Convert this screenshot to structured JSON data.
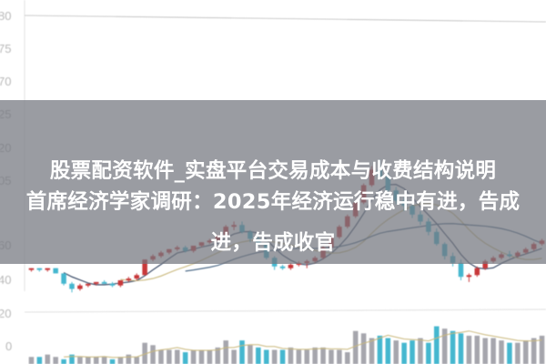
{
  "overlay": {
    "line1": "股票配资软件_实盘平台交易成本与收费结构说明",
    "line2": "首席经济学家调研：2025年经济运行稳中有进，告成",
    "line3": "进，告成收官"
  },
  "colors": {
    "up": "#c8383a",
    "down": "#45b7cf",
    "volume_neutral": "#a6a6ad",
    "ma_short": "#2c3e5c",
    "ma_long": "#c9b77a",
    "overlay": "#75787e"
  },
  "chart_data": {
    "type": "candlestick",
    "price_axis_labels": [
      "80",
      "75",
      "70",
      "25",
      "20",
      "05",
      "60",
      "40"
    ],
    "volume_axis_labels": [
      "20",
      "0"
    ],
    "ylim": [
      30,
      115
    ],
    "volume_ylim": [
      0,
      22
    ],
    "grid": false,
    "candles": [
      [
        46,
        47,
        45,
        47
      ],
      [
        47,
        47,
        45,
        46
      ],
      [
        46,
        47,
        45,
        47
      ],
      [
        47,
        47,
        44,
        44
      ],
      [
        44,
        44,
        37,
        38
      ],
      [
        38,
        39,
        33,
        35
      ],
      [
        35,
        38,
        34,
        37
      ],
      [
        37,
        38,
        36,
        38
      ],
      [
        38,
        39,
        37,
        39
      ],
      [
        39,
        40,
        38,
        38
      ],
      [
        38,
        39,
        36,
        37
      ],
      [
        37,
        40,
        36,
        40
      ],
      [
        40,
        42,
        39,
        41
      ],
      [
        41,
        44,
        40,
        43
      ],
      [
        43,
        52,
        43,
        52
      ],
      [
        52,
        55,
        51,
        54
      ],
      [
        54,
        57,
        53,
        56
      ],
      [
        56,
        58,
        55,
        58
      ],
      [
        58,
        60,
        57,
        59
      ],
      [
        59,
        60,
        56,
        57
      ],
      [
        57,
        60,
        56,
        60
      ],
      [
        60,
        62,
        59,
        62
      ],
      [
        62,
        64,
        61,
        63
      ],
      [
        63,
        66,
        62,
        66
      ],
      [
        66,
        72,
        65,
        71
      ],
      [
        71,
        74,
        69,
        72
      ],
      [
        72,
        74,
        67,
        68
      ],
      [
        68,
        69,
        62,
        64
      ],
      [
        64,
        66,
        60,
        61
      ],
      [
        61,
        62,
        52,
        53
      ],
      [
        53,
        54,
        46,
        48
      ],
      [
        48,
        49,
        46,
        47
      ],
      [
        47,
        50,
        46,
        49
      ],
      [
        49,
        51,
        48,
        50
      ],
      [
        50,
        52,
        47,
        51
      ],
      [
        51,
        54,
        50,
        53
      ],
      [
        53,
        60,
        52,
        59
      ],
      [
        59,
        66,
        58,
        65
      ],
      [
        65,
        72,
        64,
        71
      ],
      [
        71,
        78,
        70,
        77
      ],
      [
        77,
        86,
        76,
        85
      ],
      [
        85,
        96,
        84,
        95
      ],
      [
        95,
        106,
        94,
        104
      ],
      [
        104,
        110,
        98,
        100
      ],
      [
        100,
        102,
        90,
        92
      ],
      [
        92,
        94,
        84,
        86
      ],
      [
        86,
        88,
        80,
        83
      ],
      [
        83,
        84,
        76,
        78
      ],
      [
        78,
        80,
        72,
        74
      ],
      [
        74,
        76,
        66,
        68
      ],
      [
        68,
        70,
        60,
        61
      ],
      [
        61,
        62,
        52,
        54
      ],
      [
        54,
        56,
        48,
        50
      ],
      [
        50,
        52,
        40,
        42
      ],
      [
        42,
        44,
        39,
        43
      ],
      [
        43,
        48,
        42,
        47
      ],
      [
        47,
        52,
        46,
        51
      ],
      [
        51,
        54,
        50,
        53
      ],
      [
        53,
        56,
        52,
        55
      ],
      [
        55,
        57,
        53,
        54
      ],
      [
        54,
        57,
        53,
        56
      ],
      [
        56,
        59,
        55,
        58
      ],
      [
        58,
        62,
        57,
        61
      ],
      [
        61,
        64,
        60,
        63
      ]
    ],
    "volume": [
      3,
      3,
      4,
      3,
      2,
      4,
      3,
      3,
      3,
      3,
      2,
      3,
      4,
      3,
      9,
      8,
      6,
      6,
      6,
      5,
      6,
      6,
      6,
      7,
      10,
      6,
      10,
      8,
      7,
      6,
      6,
      6,
      7,
      6,
      6,
      7,
      7,
      6,
      6,
      5,
      14,
      13,
      11,
      12,
      11,
      10,
      9,
      10,
      11,
      9,
      16,
      15,
      14,
      13,
      12,
      12,
      11,
      11,
      10,
      9,
      9,
      10,
      11,
      12
    ]
  }
}
